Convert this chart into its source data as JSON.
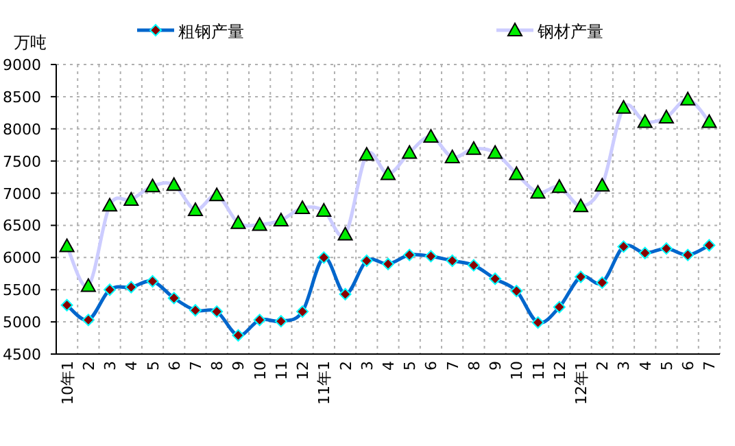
{
  "chart_data": {
    "type": "line",
    "ylabel": "万吨",
    "categories": [
      "10年1",
      "2",
      "3",
      "4",
      "5",
      "6",
      "7",
      "8",
      "9",
      "10",
      "11",
      "12",
      "11年1",
      "2",
      "3",
      "4",
      "5",
      "6",
      "7",
      "8",
      "9",
      "10",
      "11",
      "12",
      "12年1",
      "2",
      "3",
      "4",
      "5",
      "6",
      "7"
    ],
    "series": [
      {
        "name": "粗钢产量",
        "color": "#0066cc",
        "marker": "diamond",
        "values": [
          5260,
          5030,
          5500,
          5540,
          5630,
          5370,
          5180,
          5160,
          4790,
          5030,
          5010,
          5160,
          6000,
          5430,
          5950,
          5900,
          6040,
          6020,
          5950,
          5880,
          5670,
          5480,
          4990,
          5230,
          5700,
          5610,
          6170,
          6070,
          6140,
          6040,
          6190
        ]
      },
      {
        "name": "钢材产量",
        "color": "#ccccff",
        "marker": "triangle",
        "values": [
          6180,
          5560,
          6810,
          6900,
          7110,
          7130,
          6740,
          6970,
          6540,
          6510,
          6580,
          6770,
          6730,
          6360,
          7600,
          7300,
          7630,
          7880,
          7560,
          7690,
          7630,
          7300,
          7010,
          7100,
          6800,
          7120,
          8330,
          8110,
          8180,
          8460,
          8110
        ]
      }
    ],
    "ylim": [
      4500,
      9000
    ],
    "yticks": [
      4500,
      5000,
      5500,
      6000,
      6500,
      7000,
      7500,
      8000,
      8500,
      9000
    ],
    "grid": true,
    "legend": "top"
  }
}
